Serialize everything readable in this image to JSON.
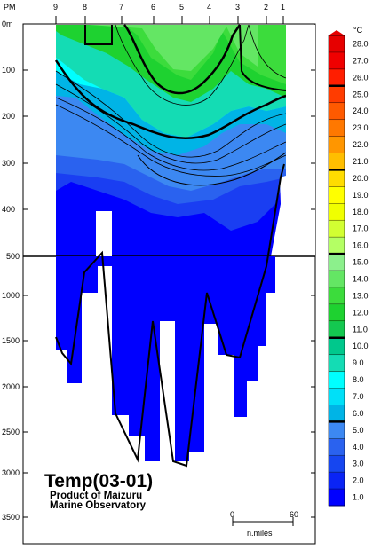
{
  "chart_data": {
    "type": "heatmap",
    "title": "Temp(03-01)",
    "subtitle_lines": [
      "Product of Maizuru",
      "Marine Observatory"
    ],
    "top_left_label": "PM",
    "stations": [
      "9",
      "8",
      "7",
      "6",
      "5",
      "4",
      "3",
      "2",
      "1"
    ],
    "depth_ticks_upper": [
      "0m",
      "100",
      "200",
      "300",
      "400"
    ],
    "break_tick": "500",
    "depth_ticks_lower": [
      "1000",
      "1500",
      "2000",
      "2500",
      "3000",
      "3500"
    ],
    "colorbar": {
      "unit": "°C",
      "labels": [
        "1.0",
        "2.0",
        "3.0",
        "4.0",
        "5.0",
        "6.0",
        "7.0",
        "8.0",
        "9.0",
        "10.0",
        "11.0",
        "12.0",
        "13.0",
        "14.0",
        "15.0",
        "16.0",
        "17.0",
        "18.0",
        "19.0",
        "20.0",
        "21.0",
        "22.0",
        "23.0",
        "24.0",
        "25.0",
        "26.0",
        "27.0",
        "28.0"
      ],
      "colors": [
        "#0000ff",
        "#0a24f5",
        "#1646f0",
        "#2a62ef",
        "#3c88f2",
        "#00b4e6",
        "#00e0f8",
        "#00ffff",
        "#14dcb4",
        "#00c88c",
        "#14c850",
        "#1ed230",
        "#3cdc3c",
        "#64e664",
        "#8cf08c",
        "#b4ff64",
        "#d2ff32",
        "#f0ff00",
        "#ffff00",
        "#ffdc00",
        "#ffbe00",
        "#ff9600",
        "#ff7800",
        "#ff5a00",
        "#ff3c00",
        "#ff1e00",
        "#f00000",
        "#e60000"
      ],
      "bold_levels": [
        "5.0",
        "10.0",
        "15.0",
        "20.0",
        "25.0"
      ]
    },
    "scale_bar": {
      "start": "0",
      "end": "60",
      "unit": "n.miles"
    }
  }
}
